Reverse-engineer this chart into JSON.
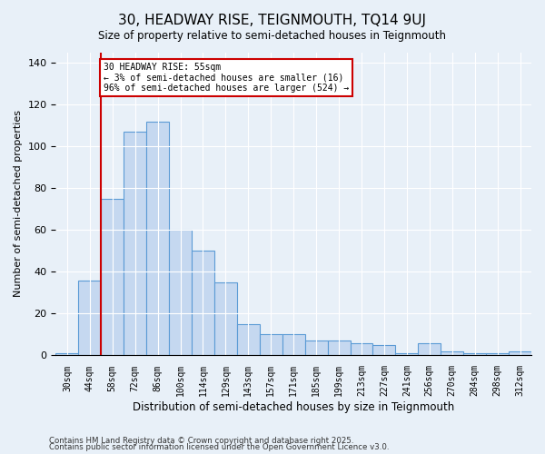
{
  "title": "30, HEADWAY RISE, TEIGNMOUTH, TQ14 9UJ",
  "subtitle": "Size of property relative to semi-detached houses in Teignmouth",
  "xlabel": "Distribution of semi-detached houses by size in Teignmouth",
  "ylabel": "Number of semi-detached properties",
  "categories": [
    "30sqm",
    "44sqm",
    "58sqm",
    "72sqm",
    "86sqm",
    "100sqm",
    "114sqm",
    "129sqm",
    "143sqm",
    "157sqm",
    "171sqm",
    "185sqm",
    "199sqm",
    "213sqm",
    "227sqm",
    "241sqm",
    "256sqm",
    "270sqm",
    "284sqm",
    "298sqm",
    "312sqm"
  ],
  "values": [
    1,
    36,
    75,
    107,
    112,
    60,
    50,
    35,
    15,
    10,
    10,
    7,
    7,
    6,
    5,
    1,
    6,
    2,
    1,
    1,
    2
  ],
  "bar_color": "#c5d8f0",
  "bar_edge_color": "#5b9bd5",
  "vline_x": 1.5,
  "vline_color": "#cc0000",
  "annotation_title": "30 HEADWAY RISE: 55sqm",
  "annotation_line1": "← 3% of semi-detached houses are smaller (16)",
  "annotation_line2": "96% of semi-detached houses are larger (524) →",
  "annotation_box_color": "#cc0000",
  "ylim": [
    0,
    145
  ],
  "yticks": [
    0,
    20,
    40,
    60,
    80,
    100,
    120,
    140
  ],
  "footnote1": "Contains HM Land Registry data © Crown copyright and database right 2025.",
  "footnote2": "Contains public sector information licensed under the Open Government Licence v3.0.",
  "background_color": "#e8f0f8",
  "grid_color": "#ffffff"
}
